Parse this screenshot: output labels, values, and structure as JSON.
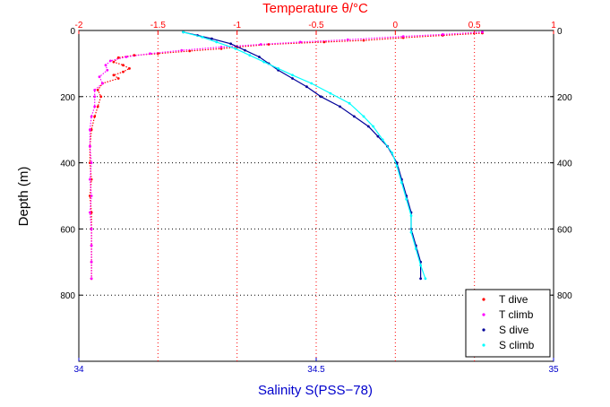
{
  "chart_data": {
    "type": "scatter",
    "title": "Temperature θ/°C",
    "top_axis": {
      "label": "Temperature θ/°C",
      "range": [
        -2,
        1
      ],
      "ticks": [
        "-2",
        "-1.5",
        "-1",
        "-0.5",
        "0",
        "0.5",
        "1"
      ],
      "color": "#ff0000"
    },
    "bottom_axis": {
      "label": "Salinity S(PSS−78)",
      "range": [
        34,
        35
      ],
      "ticks": [
        "34",
        "34.5",
        "35"
      ],
      "color": "#0000cc"
    },
    "ylabel": "Depth (m)",
    "ylim": [
      0,
      1000
    ],
    "yticks": [
      "0",
      "200",
      "400",
      "600",
      "800"
    ],
    "yaxis_inverted": true,
    "grid": true,
    "legend_placement": "bottom-right",
    "legend": [
      {
        "label": "T dive",
        "color": "#ff0000"
      },
      {
        "label": "T climb",
        "color": "#ff00ff"
      },
      {
        "label": "S dive",
        "color": "#000099"
      },
      {
        "label": "S climb",
        "color": "#00ffff"
      }
    ],
    "series": [
      {
        "name": "T dive",
        "axis": "temperature",
        "color": "#ff0000",
        "points": [
          [
            0.55,
            8
          ],
          [
            0.3,
            15
          ],
          [
            0.05,
            22
          ],
          [
            -0.2,
            30
          ],
          [
            -0.45,
            35
          ],
          [
            -0.8,
            42
          ],
          [
            -1.0,
            50
          ],
          [
            -1.1,
            55
          ],
          [
            -1.3,
            62
          ],
          [
            -1.5,
            70
          ],
          [
            -1.65,
            75
          ],
          [
            -1.75,
            82
          ],
          [
            -1.78,
            95
          ],
          [
            -1.72,
            105
          ],
          [
            -1.68,
            115
          ],
          [
            -1.72,
            125
          ],
          [
            -1.78,
            135
          ],
          [
            -1.75,
            145
          ],
          [
            -1.85,
            160
          ],
          [
            -1.88,
            180
          ],
          [
            -1.86,
            200
          ],
          [
            -1.88,
            230
          ],
          [
            -1.9,
            260
          ],
          [
            -1.92,
            300
          ],
          [
            -1.93,
            350
          ],
          [
            -1.93,
            400
          ],
          [
            -1.92,
            450
          ],
          [
            -1.93,
            500
          ],
          [
            -1.92,
            550
          ],
          [
            -1.92,
            600
          ],
          [
            -1.92,
            650
          ],
          [
            -1.92,
            700
          ],
          [
            -1.92,
            750
          ]
        ]
      },
      {
        "name": "T climb",
        "axis": "temperature",
        "color": "#ff00ff",
        "points": [
          [
            0.55,
            5
          ],
          [
            0.3,
            12
          ],
          [
            0.05,
            18
          ],
          [
            -0.3,
            28
          ],
          [
            -0.6,
            35
          ],
          [
            -0.85,
            42
          ],
          [
            -1.1,
            50
          ],
          [
            -1.35,
            60
          ],
          [
            -1.55,
            70
          ],
          [
            -1.7,
            80
          ],
          [
            -1.8,
            92
          ],
          [
            -1.83,
            105
          ],
          [
            -1.82,
            120
          ],
          [
            -1.87,
            140
          ],
          [
            -1.85,
            160
          ],
          [
            -1.9,
            180
          ],
          [
            -1.9,
            200
          ],
          [
            -1.9,
            230
          ],
          [
            -1.92,
            260
          ],
          [
            -1.93,
            300
          ],
          [
            -1.93,
            350
          ],
          [
            -1.92,
            400
          ],
          [
            -1.93,
            450
          ],
          [
            -1.92,
            500
          ],
          [
            -1.93,
            550
          ],
          [
            -1.92,
            600
          ],
          [
            -1.92,
            650
          ],
          [
            -1.92,
            700
          ],
          [
            -1.92,
            750
          ]
        ]
      },
      {
        "name": "S dive",
        "axis": "salinity",
        "color": "#000099",
        "points": [
          [
            34.22,
            5
          ],
          [
            34.25,
            15
          ],
          [
            34.28,
            25
          ],
          [
            34.32,
            40
          ],
          [
            34.35,
            60
          ],
          [
            34.38,
            80
          ],
          [
            34.4,
            100
          ],
          [
            34.42,
            120
          ],
          [
            34.45,
            145
          ],
          [
            34.48,
            170
          ],
          [
            34.51,
            200
          ],
          [
            34.55,
            230
          ],
          [
            34.58,
            260
          ],
          [
            34.61,
            290
          ],
          [
            34.63,
            320
          ],
          [
            34.65,
            350
          ],
          [
            34.67,
            400
          ],
          [
            34.68,
            450
          ],
          [
            34.69,
            500
          ],
          [
            34.7,
            550
          ],
          [
            34.7,
            600
          ],
          [
            34.71,
            650
          ],
          [
            34.72,
            700
          ],
          [
            34.72,
            750
          ]
        ]
      },
      {
        "name": "S climb",
        "axis": "salinity",
        "color": "#00ffff",
        "points": [
          [
            34.22,
            5
          ],
          [
            34.26,
            20
          ],
          [
            34.29,
            35
          ],
          [
            34.33,
            55
          ],
          [
            34.36,
            75
          ],
          [
            34.39,
            95
          ],
          [
            34.42,
            115
          ],
          [
            34.45,
            135
          ],
          [
            34.49,
            160
          ],
          [
            34.53,
            190
          ],
          [
            34.57,
            220
          ],
          [
            34.6,
            260
          ],
          [
            34.62,
            290
          ],
          [
            34.64,
            330
          ],
          [
            34.66,
            370
          ],
          [
            34.67,
            410
          ],
          [
            34.68,
            460
          ],
          [
            34.69,
            510
          ],
          [
            34.7,
            560
          ],
          [
            34.7,
            610
          ],
          [
            34.71,
            660
          ],
          [
            34.72,
            710
          ],
          [
            34.73,
            750
          ]
        ]
      }
    ]
  }
}
